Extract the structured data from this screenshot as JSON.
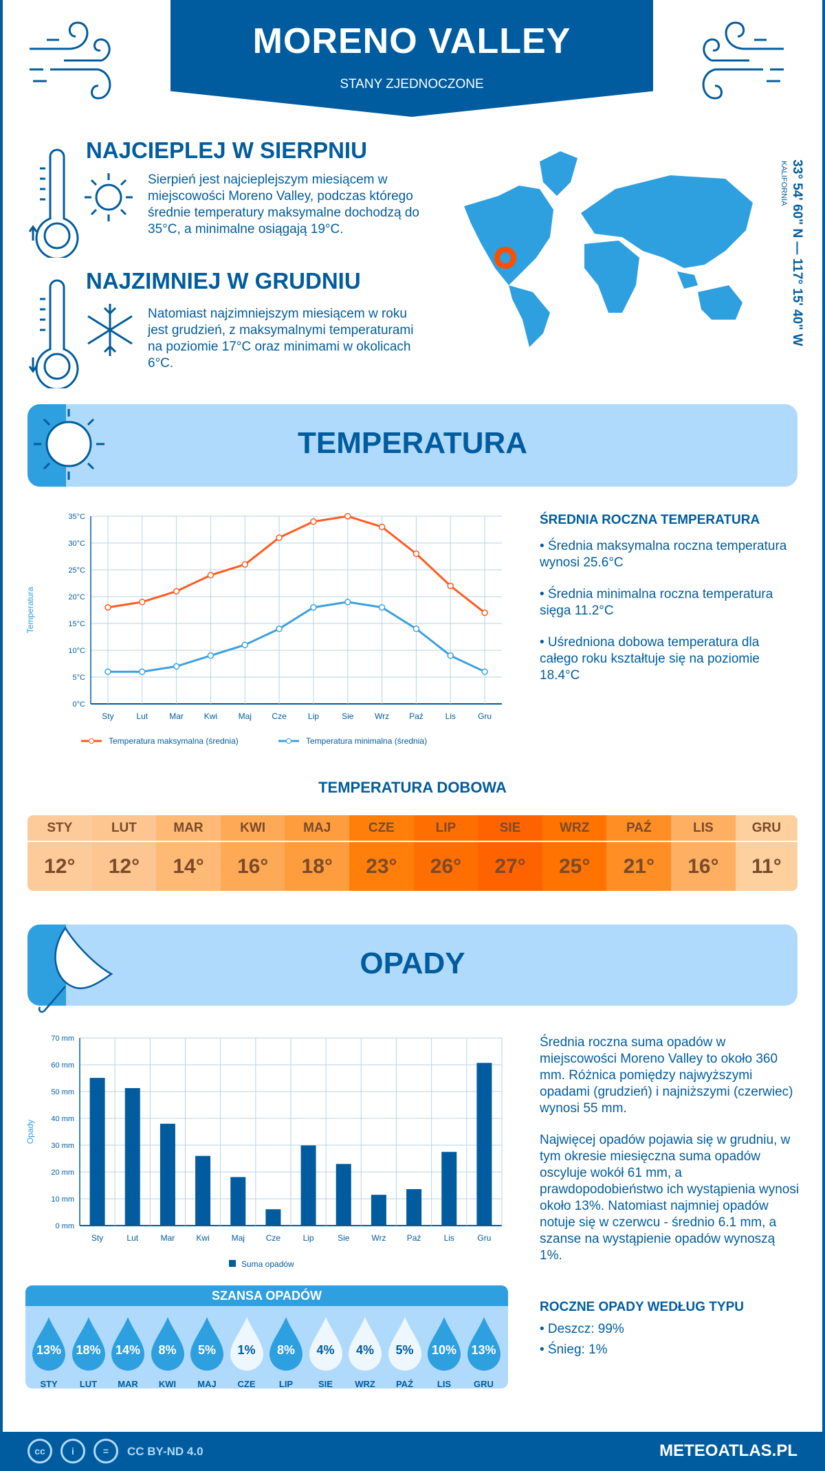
{
  "header": {
    "title": "MORENO VALLEY",
    "subtitle": "STANY ZJEDNOCZONE"
  },
  "warmest": {
    "title": "NAJCIEPLEJ W SIERPNIU",
    "text": "Sierpień jest najcieplejszym miesiącem w miejscowości Moreno Valley, podczas którego średnie temperatury maksymalne dochodzą do 35°C, a minimalne osiągają 19°C."
  },
  "coldest": {
    "title": "NAJZIMNIEJ W GRUDNIU",
    "text": "Natomiast najzimniejszym miesiącem w roku jest grudzień, z maksymalnymi temperaturami na poziomie 17°C oraz minimami w okolicach 6°C."
  },
  "location": {
    "coords": "33° 54' 60\" N — 117° 15' 40\" W",
    "region": "KALIFORNIA",
    "marker_color": "#ff4e00"
  },
  "temp_section": {
    "title": "TEMPERATURA",
    "side_title": "ŚREDNIA ROCZNA TEMPERATURA",
    "bullets": [
      "• Średnia maksymalna roczna temperatura wynosi 25.6°C",
      "• Średnia minimalna roczna temperatura sięga 11.2°C",
      "• Uśredniona dobowa temperatura dla całego roku kształtuje się na poziomie 18.4°C"
    ]
  },
  "chart_data": [
    {
      "type": "line",
      "ylabel": "Temperatura",
      "ylim": [
        0,
        35
      ],
      "yticks": [
        "0°C",
        "5°C",
        "10°C",
        "15°C",
        "20°C",
        "25°C",
        "30°C",
        "35°C"
      ],
      "categories": [
        "Sty",
        "Lut",
        "Mar",
        "Kwi",
        "Maj",
        "Cze",
        "Lip",
        "Sie",
        "Wrz",
        "Paź",
        "Lis",
        "Gru"
      ],
      "series": [
        {
          "name": "Temperatura maksymalna (średnia)",
          "color": "#ff5a1f",
          "values": [
            18,
            19,
            21,
            24,
            26,
            31,
            34,
            35,
            33,
            28,
            22,
            17
          ]
        },
        {
          "name": "Temperatura minimalna (średnia)",
          "color": "#3aa0e0",
          "values": [
            6,
            6,
            7,
            9,
            11,
            14,
            18,
            19,
            18,
            14,
            9,
            6
          ]
        }
      ],
      "grid": true,
      "legend": "bottom"
    },
    {
      "type": "bar",
      "ylabel": "Opady",
      "ylim": [
        0,
        70
      ],
      "yticks": [
        "0 mm",
        "10 mm",
        "20 mm",
        "30 mm",
        "40 mm",
        "50 mm",
        "60 mm",
        "70 mm"
      ],
      "categories": [
        "Sty",
        "Lut",
        "Mar",
        "Kwi",
        "Maj",
        "Cze",
        "Lip",
        "Sie",
        "Wrz",
        "Paź",
        "Lis",
        "Gru"
      ],
      "series": [
        {
          "name": "Suma opadów",
          "color": "#005c9e",
          "values": [
            55.1,
            51.3,
            38,
            26,
            18.1,
            6.1,
            29.9,
            23,
            11.5,
            13.6,
            27.5,
            60.7
          ]
        }
      ],
      "grid": true,
      "legend": "bottom"
    }
  ],
  "daily": {
    "title": "TEMPERATURA DOBOWA",
    "months": [
      "STY",
      "LUT",
      "MAR",
      "KWI",
      "MAJ",
      "CZE",
      "LIP",
      "SIE",
      "WRZ",
      "PAŹ",
      "LIS",
      "GRU"
    ],
    "values": [
      "12°",
      "12°",
      "14°",
      "16°",
      "18°",
      "23°",
      "26°",
      "27°",
      "25°",
      "21°",
      "16°",
      "11°"
    ],
    "colors": [
      "#fdcb9a",
      "#fdc690",
      "#feba75",
      "#fea956",
      "#fe9d3e",
      "#ff7f0a",
      "#ff6e00",
      "#ff6300",
      "#ff7300",
      "#ff8f24",
      "#feaf61",
      "#fdd09e"
    ]
  },
  "precip_section": {
    "title": "OPADY",
    "text1": "Średnia roczna suma opadów w miejscowości Moreno Valley to około 360 mm. Różnica pomiędzy najwyższymi opadami (grudzień) i najniższymi (czerwiec) wynosi 55 mm.",
    "text2": "Najwięcej opadów pojawia się w grudniu, w tym okresie miesięczna suma opadów oscyluje wokół 61 mm, a prawdopodobieństwo ich wystąpienia wynosi około 13%. Natomiast najmniej opadów notuje się w czerwcu - średnio 6.1 mm, a szanse na wystąpienie opadów wynoszą 1%.",
    "type_title": "ROCZNE OPADY WEDŁUG TYPU",
    "types": [
      "• Deszcz: 99%",
      "• Śnieg: 1%"
    ]
  },
  "chance": {
    "title": "SZANSA OPADÓW",
    "items": [
      {
        "m": "STY",
        "p": "13%",
        "hi": true
      },
      {
        "m": "LUT",
        "p": "18%",
        "hi": true
      },
      {
        "m": "MAR",
        "p": "14%",
        "hi": true
      },
      {
        "m": "KWI",
        "p": "8%",
        "hi": true
      },
      {
        "m": "MAJ",
        "p": "5%",
        "hi": true
      },
      {
        "m": "CZE",
        "p": "1%",
        "hi": false
      },
      {
        "m": "LIP",
        "p": "8%",
        "hi": true
      },
      {
        "m": "SIE",
        "p": "4%",
        "hi": false
      },
      {
        "m": "WRZ",
        "p": "4%",
        "hi": false
      },
      {
        "m": "PAŹ",
        "p": "5%",
        "hi": false
      },
      {
        "m": "LIS",
        "p": "10%",
        "hi": true
      },
      {
        "m": "GRU",
        "p": "13%",
        "hi": true
      }
    ]
  },
  "footer": {
    "license": "CC BY-ND 4.0",
    "site": "METEOATLAS.PL",
    "icons": [
      "cc-icon",
      "by-icon",
      "nd-icon"
    ]
  }
}
